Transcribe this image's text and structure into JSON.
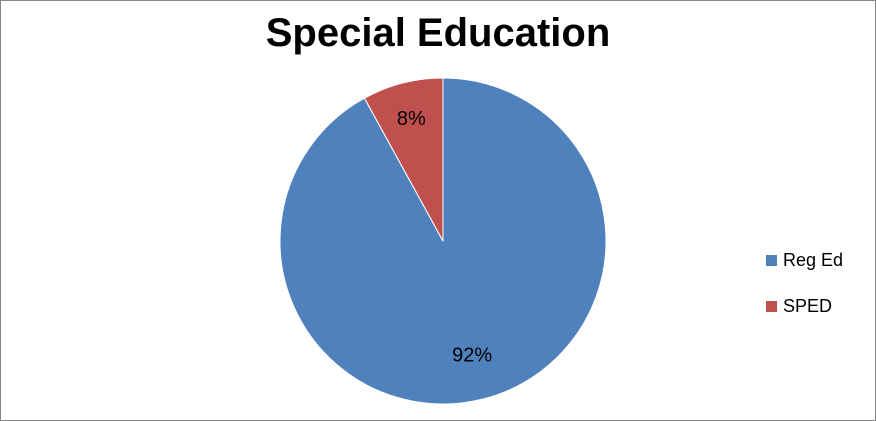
{
  "chart_data": {
    "type": "pie",
    "title": "Special Education",
    "slices": [
      {
        "label": "Reg Ed",
        "value": 92,
        "data_label": "92%",
        "color": "#4F81BD"
      },
      {
        "label": "SPED",
        "value": 8,
        "data_label": "8%",
        "color": "#C0504D"
      }
    ],
    "legend_position": "right"
  }
}
